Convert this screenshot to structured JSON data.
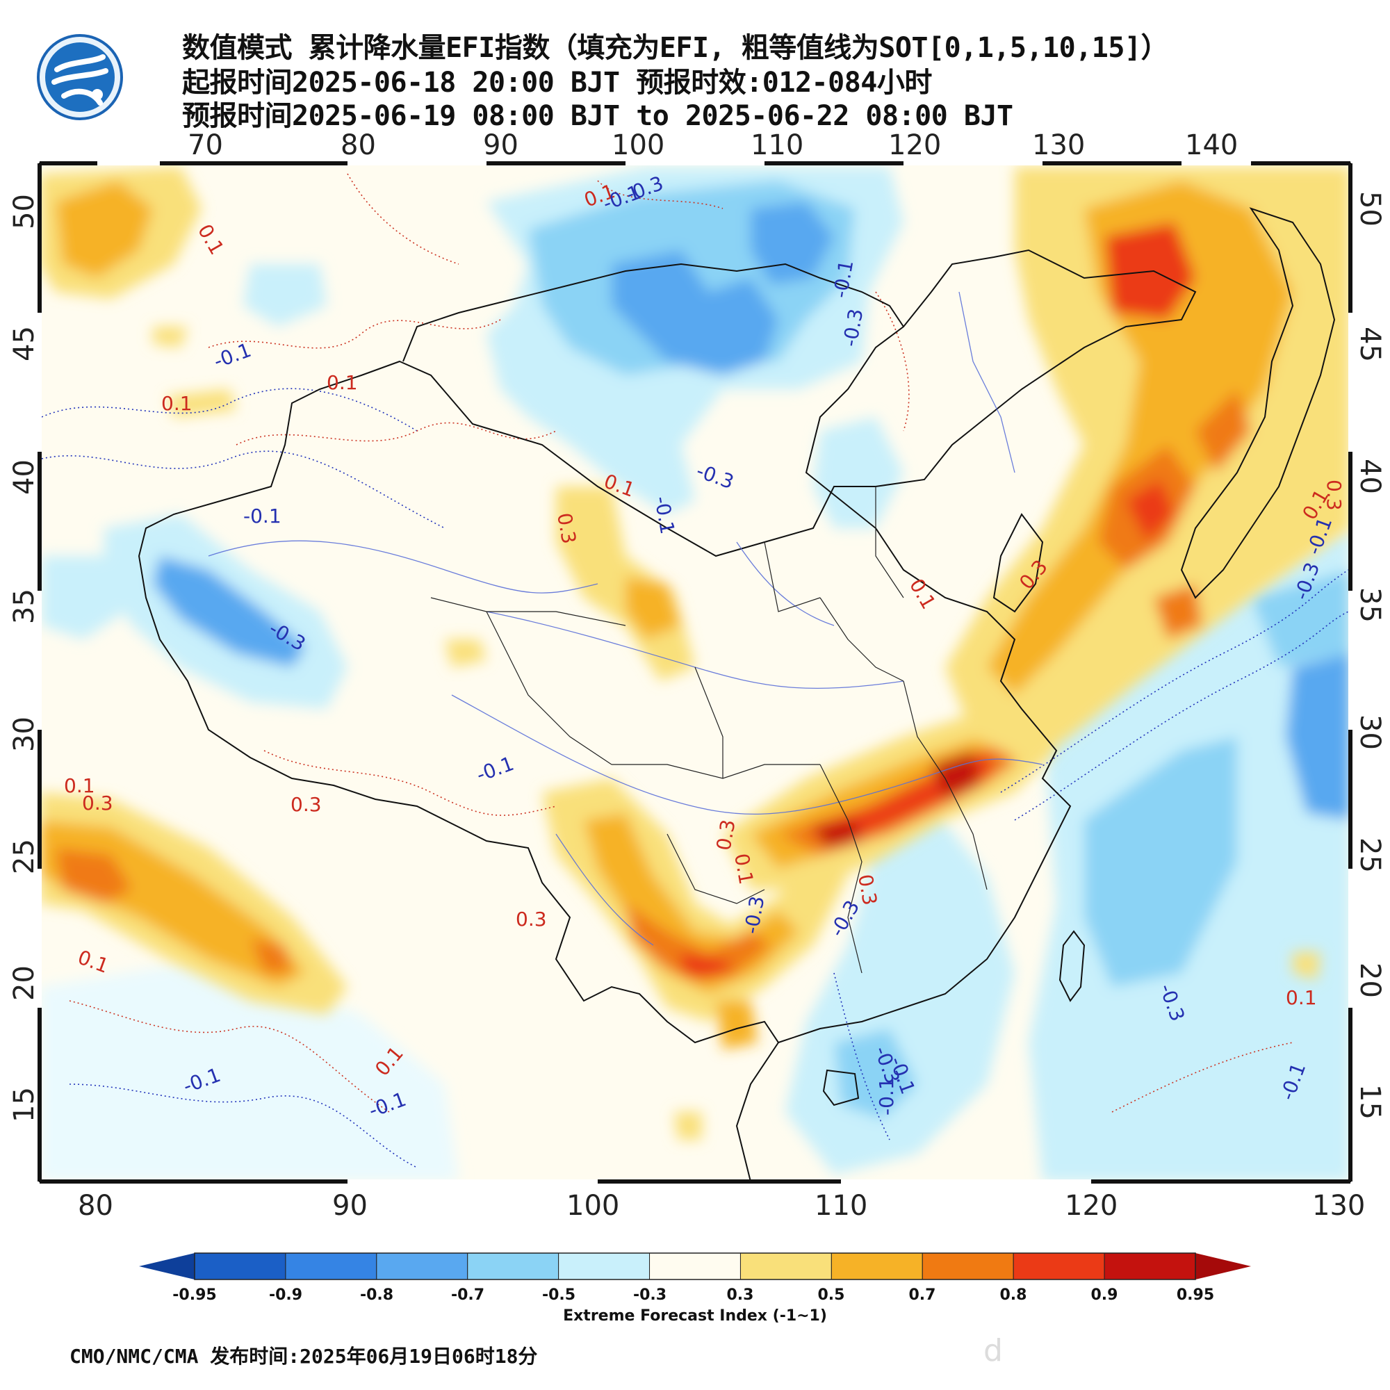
{
  "title": {
    "line1": "数值模式 累计降水量EFI指数（填充为EFI, 粗等值线为SOT[0,1,5,10,15]）",
    "line2": "起报时间2025-06-18 20:00 BJT 预报时效:012-084小时",
    "line3": "预报时间2025-06-19 08:00 BJT to 2025-06-22 08:00 BJT"
  },
  "map": {
    "top_lon_labels": [
      "70",
      "80",
      "90",
      "100",
      "110",
      "120",
      "130",
      "140"
    ],
    "bottom_lon_labels": [
      "80",
      "90",
      "100",
      "110",
      "120",
      "130"
    ],
    "left_lat_labels": [
      "50",
      "45",
      "40",
      "35",
      "30",
      "25",
      "20",
      "15"
    ],
    "right_lat_labels": [
      "50",
      "45",
      "40",
      "35",
      "30",
      "25",
      "20",
      "15"
    ],
    "contour_labels": [
      "0.1",
      "-0.1",
      "-0.3",
      "-0.1",
      "-0.3",
      "0.1",
      "0.1",
      "-0.1",
      "0.1",
      "0.1",
      "-0.1",
      "-0.3",
      "-0.1",
      "0.3",
      "-0.3",
      "0.3",
      "0.1",
      "0.3",
      "0.3",
      "-0.1",
      "0.3",
      "0.1",
      "0.3",
      "-0.3",
      "0.1",
      "0.3",
      "-0.3",
      "-0.1",
      "-0.3",
      "0.1",
      "0.1",
      "-0.1",
      "-0.1",
      "0.1",
      "-0.3",
      "-0.1",
      "0.3",
      "-0.1",
      "-0.3",
      "0.1",
      "-0.1"
    ]
  },
  "colorbar": {
    "ticks": [
      "-0.95",
      "-0.9",
      "-0.8",
      "-0.7",
      "-0.5",
      "-0.3",
      "0.3",
      "0.5",
      "0.7",
      "0.8",
      "0.9",
      "0.95"
    ],
    "colors": [
      "#1b5fc6",
      "#3584e4",
      "#59a8f0",
      "#8bd3f5",
      "#c9f0fb",
      "#fffcf0",
      "#f9e07a",
      "#f6b227",
      "#f07a12",
      "#eb3a16",
      "#c4120e"
    ],
    "end_low_color": "#0e3f9a",
    "end_high_color": "#a50a0a",
    "label": "Extreme Forecast Index (-1~1)"
  },
  "footer": {
    "text": "CMO/NMC/CMA 发布时间:2025年06月19日06时18分"
  },
  "watermark": {
    "text": "d"
  },
  "logo": {
    "icon": "cma-logo-icon"
  }
}
